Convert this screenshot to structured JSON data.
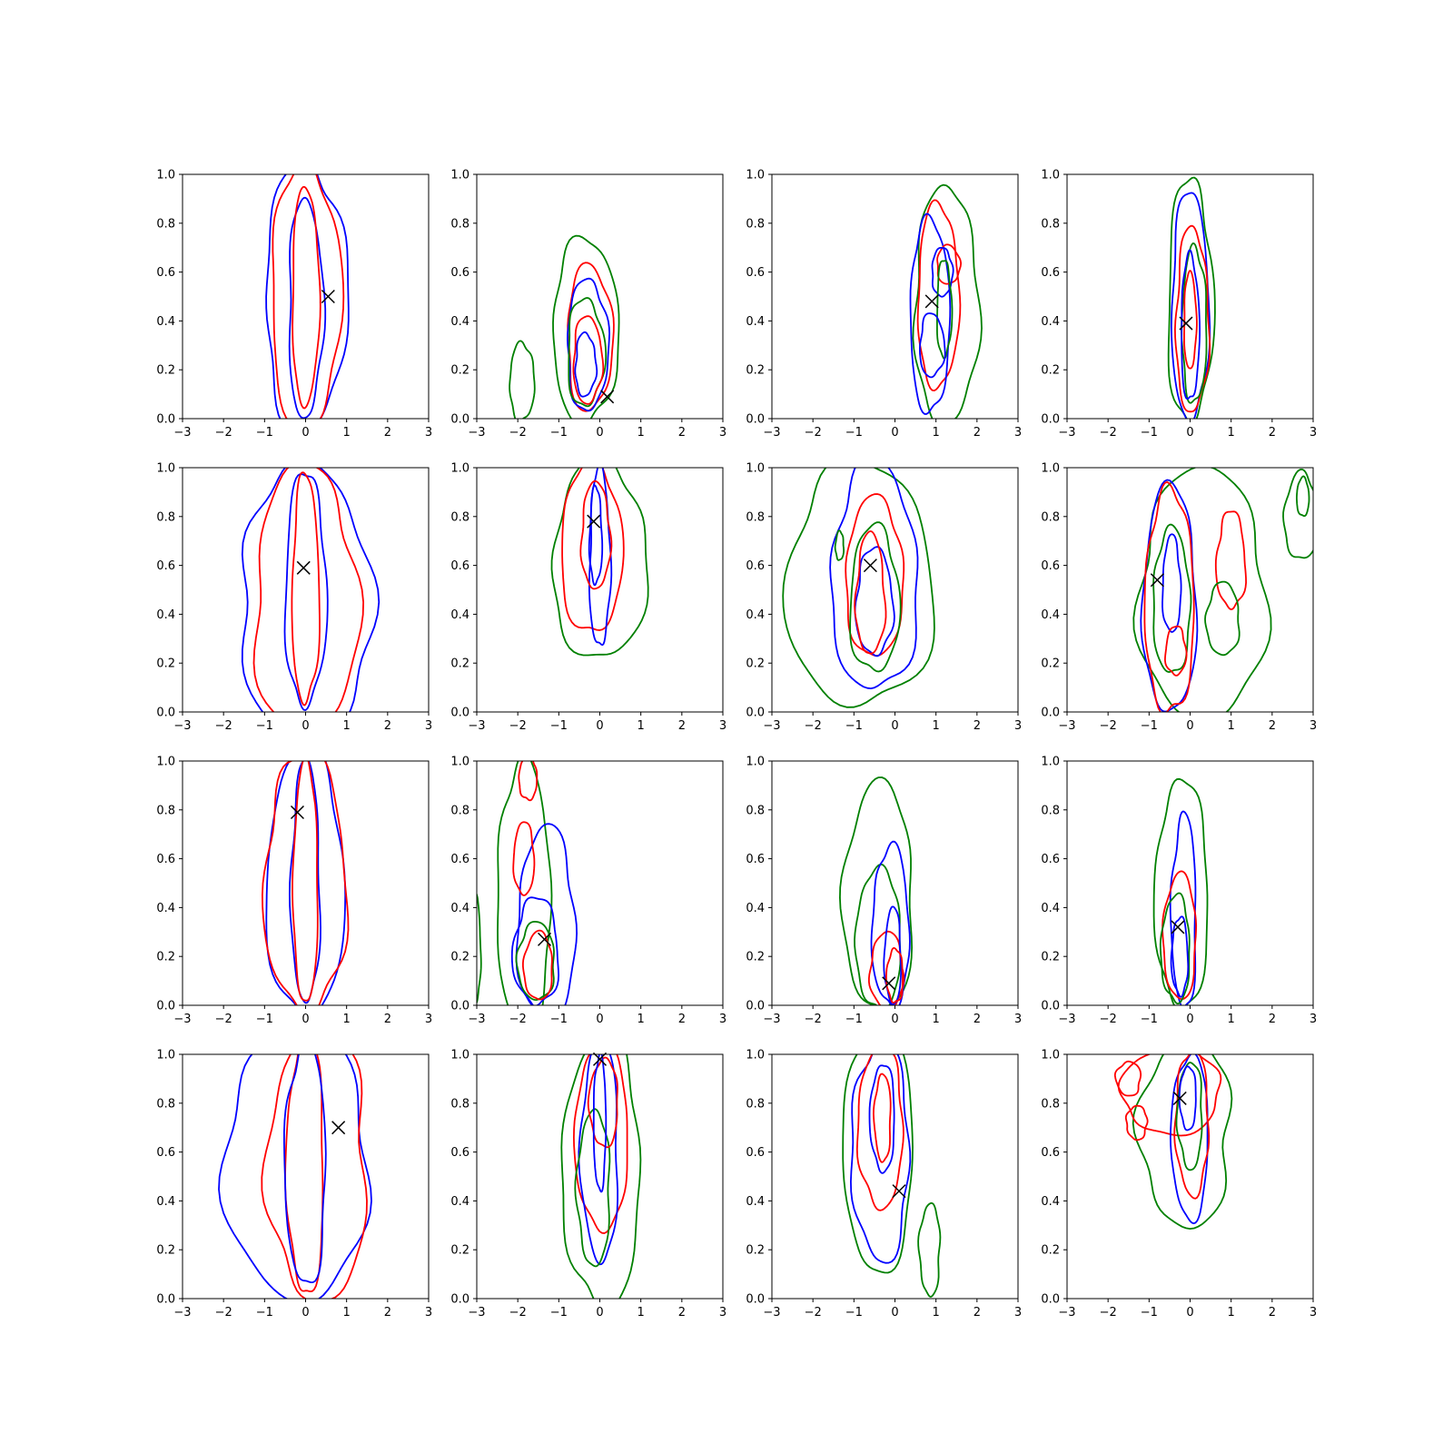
{
  "chart_data": {
    "type": "contour",
    "grid": {
      "rows": 4,
      "cols": 4
    },
    "xlim": [
      -3,
      3
    ],
    "ylim": [
      0,
      1
    ],
    "xticks": [
      -3,
      -2,
      -1,
      0,
      1,
      2,
      3
    ],
    "yticks": [
      0.0,
      0.2,
      0.4,
      0.6,
      0.8,
      1.0
    ],
    "xtick_labels": [
      "−3",
      "−2",
      "−1",
      "0",
      "1",
      "2",
      "3"
    ],
    "ytick_labels": [
      "0.0",
      "0.2",
      "0.4",
      "0.6",
      "0.8",
      "1.0"
    ],
    "colors": {
      "blue": "#0000ff",
      "red": "#ff0000",
      "green": "#008000",
      "marker": "#000000"
    },
    "panels": [
      {
        "row": 0,
        "col": 0,
        "marker": [
          0.55,
          0.5
        ],
        "contours": [
          {
            "color": "blue",
            "cx": 0.0,
            "cy": 0.5,
            "rx": 1.0,
            "ry": 0.55
          },
          {
            "color": "red",
            "cx": 0.0,
            "cy": 0.5,
            "rx": 0.85,
            "ry": 0.54
          },
          {
            "color": "blue",
            "cx": 0.0,
            "cy": 0.45,
            "rx": 0.42,
            "ry": 0.45
          },
          {
            "color": "red",
            "cx": 0.0,
            "cy": 0.5,
            "rx": 0.33,
            "ry": 0.45
          }
        ]
      },
      {
        "row": 0,
        "col": 1,
        "marker": [
          0.18,
          0.09
        ],
        "contours": [
          {
            "color": "green",
            "cx": -0.35,
            "cy": 0.36,
            "rx": 0.8,
            "ry": 0.38
          },
          {
            "color": "red",
            "cx": -0.25,
            "cy": 0.33,
            "rx": 0.55,
            "ry": 0.3
          },
          {
            "color": "blue",
            "cx": -0.3,
            "cy": 0.3,
            "rx": 0.5,
            "ry": 0.27
          },
          {
            "color": "green",
            "cx": -0.35,
            "cy": 0.27,
            "rx": 0.45,
            "ry": 0.22
          },
          {
            "color": "red",
            "cx": -0.3,
            "cy": 0.24,
            "rx": 0.35,
            "ry": 0.18
          },
          {
            "color": "blue",
            "cx": -0.35,
            "cy": 0.22,
            "rx": 0.25,
            "ry": 0.13
          },
          {
            "color": "green",
            "cx": -1.9,
            "cy": 0.15,
            "rx": 0.3,
            "ry": 0.16
          }
        ]
      },
      {
        "row": 0,
        "col": 2,
        "marker": [
          0.9,
          0.48
        ],
        "contours": [
          {
            "color": "green",
            "cx": 1.25,
            "cy": 0.46,
            "rx": 0.78,
            "ry": 0.49
          },
          {
            "color": "red",
            "cx": 1.05,
            "cy": 0.5,
            "rx": 0.5,
            "ry": 0.38
          },
          {
            "color": "blue",
            "cx": 0.85,
            "cy": 0.42,
            "rx": 0.48,
            "ry": 0.4
          },
          {
            "color": "red",
            "cx": 1.3,
            "cy": 0.63,
            "rx": 0.28,
            "ry": 0.08
          },
          {
            "color": "blue",
            "cx": 1.15,
            "cy": 0.6,
            "rx": 0.25,
            "ry": 0.1
          },
          {
            "color": "green",
            "cx": 1.2,
            "cy": 0.45,
            "rx": 0.18,
            "ry": 0.2
          },
          {
            "color": "blue",
            "cx": 0.9,
            "cy": 0.3,
            "rx": 0.3,
            "ry": 0.13
          }
        ]
      },
      {
        "row": 0,
        "col": 3,
        "marker": [
          -0.1,
          0.39
        ],
        "contours": [
          {
            "color": "green",
            "cx": 0.0,
            "cy": 0.48,
            "rx": 0.55,
            "ry": 0.5
          },
          {
            "color": "blue",
            "cx": 0.0,
            "cy": 0.46,
            "rx": 0.45,
            "ry": 0.47
          },
          {
            "color": "red",
            "cx": 0.05,
            "cy": 0.4,
            "rx": 0.4,
            "ry": 0.38
          },
          {
            "color": "green",
            "cx": 0.1,
            "cy": 0.38,
            "rx": 0.3,
            "ry": 0.32
          },
          {
            "color": "blue",
            "cx": 0.0,
            "cy": 0.37,
            "rx": 0.22,
            "ry": 0.3
          },
          {
            "color": "red",
            "cx": 0.0,
            "cy": 0.4,
            "rx": 0.15,
            "ry": 0.2
          }
        ]
      },
      {
        "row": 1,
        "col": 0,
        "marker": [
          -0.05,
          0.59
        ],
        "contours": [
          {
            "color": "blue",
            "cx": 0.0,
            "cy": 0.45,
            "rx": 1.6,
            "ry": 0.56
          },
          {
            "color": "red",
            "cx": 0.0,
            "cy": 0.45,
            "rx": 1.25,
            "ry": 0.56
          },
          {
            "color": "blue",
            "cx": 0.0,
            "cy": 0.5,
            "rx": 0.5,
            "ry": 0.48
          },
          {
            "color": "red",
            "cx": 0.0,
            "cy": 0.5,
            "rx": 0.33,
            "ry": 0.47
          }
        ]
      },
      {
        "row": 1,
        "col": 1,
        "marker": [
          -0.15,
          0.78
        ],
        "contours": [
          {
            "color": "green",
            "cx": 0.0,
            "cy": 0.62,
            "rx": 1.15,
            "ry": 0.41
          },
          {
            "color": "red",
            "cx": -0.2,
            "cy": 0.67,
            "rx": 0.75,
            "ry": 0.35
          },
          {
            "color": "blue",
            "cx": 0.0,
            "cy": 0.63,
            "rx": 0.25,
            "ry": 0.37
          },
          {
            "color": "red",
            "cx": -0.1,
            "cy": 0.72,
            "rx": 0.35,
            "ry": 0.22
          },
          {
            "color": "blue",
            "cx": -0.1,
            "cy": 0.72,
            "rx": 0.15,
            "ry": 0.2
          }
        ]
      },
      {
        "row": 1,
        "col": 2,
        "marker": [
          -0.6,
          0.6
        ],
        "contours": [
          {
            "color": "green",
            "cx": -0.85,
            "cy": 0.52,
            "rx": 1.8,
            "ry": 0.5
          },
          {
            "color": "blue",
            "cx": -0.5,
            "cy": 0.55,
            "rx": 1.05,
            "ry": 0.47
          },
          {
            "color": "red",
            "cx": -0.5,
            "cy": 0.55,
            "rx": 0.7,
            "ry": 0.33
          },
          {
            "color": "green",
            "cx": -0.5,
            "cy": 0.46,
            "rx": 0.6,
            "ry": 0.3
          },
          {
            "color": "blue",
            "cx": -0.5,
            "cy": 0.45,
            "rx": 0.45,
            "ry": 0.22
          },
          {
            "color": "red",
            "cx": -0.6,
            "cy": 0.48,
            "rx": 0.35,
            "ry": 0.25
          },
          {
            "color": "green",
            "cx": -1.35,
            "cy": 0.68,
            "rx": 0.1,
            "ry": 0.06
          }
        ]
      },
      {
        "row": 1,
        "col": 3,
        "marker": [
          -0.8,
          0.54
        ],
        "contours": [
          {
            "color": "green",
            "cx": 0.3,
            "cy": 0.48,
            "rx": 1.55,
            "ry": 0.52
          },
          {
            "color": "blue",
            "cx": -0.5,
            "cy": 0.46,
            "rx": 0.65,
            "ry": 0.47
          },
          {
            "color": "red",
            "cx": -0.5,
            "cy": 0.45,
            "rx": 0.6,
            "ry": 0.46
          },
          {
            "color": "green",
            "cx": -0.45,
            "cy": 0.45,
            "rx": 0.45,
            "ry": 0.3
          },
          {
            "color": "blue",
            "cx": -0.45,
            "cy": 0.52,
            "rx": 0.22,
            "ry": 0.2
          },
          {
            "color": "red",
            "cx": -0.35,
            "cy": 0.25,
            "rx": 0.25,
            "ry": 0.1
          },
          {
            "color": "red",
            "cx": 1.0,
            "cy": 0.62,
            "rx": 0.35,
            "ry": 0.2
          },
          {
            "color": "green",
            "cx": 0.8,
            "cy": 0.38,
            "rx": 0.4,
            "ry": 0.15
          },
          {
            "color": "green",
            "cx": 2.7,
            "cy": 0.8,
            "rx": 0.4,
            "ry": 0.18
          },
          {
            "color": "green",
            "cx": 2.75,
            "cy": 0.88,
            "rx": 0.15,
            "ry": 0.08
          }
        ]
      },
      {
        "row": 2,
        "col": 0,
        "marker": [
          -0.2,
          0.79
        ],
        "contours": [
          {
            "color": "blue",
            "cx": 0.0,
            "cy": 0.5,
            "rx": 0.95,
            "ry": 0.55
          },
          {
            "color": "red",
            "cx": 0.0,
            "cy": 0.5,
            "rx": 1.0,
            "ry": 0.53
          },
          {
            "color": "blue",
            "cx": 0.0,
            "cy": 0.5,
            "rx": 0.35,
            "ry": 0.5
          },
          {
            "color": "red",
            "cx": 0.0,
            "cy": 0.5,
            "rx": 0.3,
            "ry": 0.5
          }
        ]
      },
      {
        "row": 2,
        "col": 1,
        "marker": [
          -1.35,
          0.27
        ],
        "contours": [
          {
            "color": "green",
            "cx": -1.85,
            "cy": 0.45,
            "rx": 0.65,
            "ry": 0.55
          },
          {
            "color": "blue",
            "cx": -1.3,
            "cy": 0.33,
            "rx": 0.7,
            "ry": 0.4
          },
          {
            "color": "red",
            "cx": -1.85,
            "cy": 0.6,
            "rx": 0.25,
            "ry": 0.15
          },
          {
            "color": "blue",
            "cx": -1.55,
            "cy": 0.22,
            "rx": 0.55,
            "ry": 0.22
          },
          {
            "color": "green",
            "cx": -1.55,
            "cy": 0.18,
            "rx": 0.45,
            "ry": 0.16
          },
          {
            "color": "red",
            "cx": -1.5,
            "cy": 0.16,
            "rx": 0.35,
            "ry": 0.14
          },
          {
            "color": "red",
            "cx": -1.75,
            "cy": 0.93,
            "rx": 0.22,
            "ry": 0.09
          },
          {
            "color": "green",
            "cx": -3.05,
            "cy": 0.23,
            "rx": 0.15,
            "ry": 0.22
          }
        ]
      },
      {
        "row": 2,
        "col": 2,
        "marker": [
          -0.15,
          0.09
        ],
        "contours": [
          {
            "color": "green",
            "cx": -0.4,
            "cy": 0.44,
            "rx": 0.85,
            "ry": 0.47
          },
          {
            "color": "green",
            "cx": -0.4,
            "cy": 0.27,
            "rx": 0.55,
            "ry": 0.29
          },
          {
            "color": "blue",
            "cx": -0.1,
            "cy": 0.32,
            "rx": 0.45,
            "ry": 0.33
          },
          {
            "color": "red",
            "cx": -0.2,
            "cy": 0.14,
            "rx": 0.4,
            "ry": 0.16
          },
          {
            "color": "blue",
            "cx": -0.05,
            "cy": 0.2,
            "rx": 0.2,
            "ry": 0.2
          },
          {
            "color": "red",
            "cx": 0.0,
            "cy": 0.12,
            "rx": 0.2,
            "ry": 0.11
          }
        ]
      },
      {
        "row": 2,
        "col": 3,
        "marker": [
          -0.3,
          0.32
        ],
        "contours": [
          {
            "color": "green",
            "cx": -0.2,
            "cy": 0.45,
            "rx": 0.65,
            "ry": 0.47
          },
          {
            "color": "blue",
            "cx": -0.15,
            "cy": 0.38,
            "rx": 0.3,
            "ry": 0.4
          },
          {
            "color": "red",
            "cx": -0.25,
            "cy": 0.28,
            "rx": 0.4,
            "ry": 0.26
          },
          {
            "color": "green",
            "cx": -0.35,
            "cy": 0.23,
            "rx": 0.35,
            "ry": 0.22
          },
          {
            "color": "blue",
            "cx": -0.25,
            "cy": 0.2,
            "rx": 0.2,
            "ry": 0.16
          }
        ]
      },
      {
        "row": 3,
        "col": 0,
        "marker": [
          0.8,
          0.7
        ],
        "contours": [
          {
            "color": "blue",
            "cx": -0.2,
            "cy": 0.55,
            "rx": 1.75,
            "ry": 0.56
          },
          {
            "color": "red",
            "cx": 0.3,
            "cy": 0.55,
            "rx": 1.2,
            "ry": 0.57
          },
          {
            "color": "red",
            "cx": 0.0,
            "cy": 0.55,
            "rx": 0.45,
            "ry": 0.54
          },
          {
            "color": "blue",
            "cx": 0.0,
            "cy": 0.55,
            "rx": 0.5,
            "ry": 0.5
          }
        ]
      },
      {
        "row": 3,
        "col": 1,
        "marker": [
          0.0,
          0.98
        ],
        "contours": [
          {
            "color": "green",
            "cx": 0.05,
            "cy": 0.52,
            "rx": 0.95,
            "ry": 0.56
          },
          {
            "color": "red",
            "cx": 0.05,
            "cy": 0.66,
            "rx": 0.65,
            "ry": 0.38
          },
          {
            "color": "blue",
            "cx": 0.0,
            "cy": 0.6,
            "rx": 0.45,
            "ry": 0.45
          },
          {
            "color": "green",
            "cx": -0.15,
            "cy": 0.45,
            "rx": 0.4,
            "ry": 0.32
          },
          {
            "color": "red",
            "cx": 0.1,
            "cy": 0.8,
            "rx": 0.35,
            "ry": 0.18
          },
          {
            "color": "blue",
            "cx": 0.0,
            "cy": 0.72,
            "rx": 0.15,
            "ry": 0.28
          }
        ]
      },
      {
        "row": 3,
        "col": 2,
        "marker": [
          0.1,
          0.44
        ],
        "contours": [
          {
            "color": "green",
            "cx": -0.4,
            "cy": 0.62,
            "rx": 0.85,
            "ry": 0.52
          },
          {
            "color": "blue",
            "cx": -0.35,
            "cy": 0.6,
            "rx": 0.7,
            "ry": 0.45
          },
          {
            "color": "red",
            "cx": -0.35,
            "cy": 0.7,
            "rx": 0.55,
            "ry": 0.33
          },
          {
            "color": "blue",
            "cx": -0.3,
            "cy": 0.74,
            "rx": 0.3,
            "ry": 0.22
          },
          {
            "color": "red",
            "cx": -0.3,
            "cy": 0.74,
            "rx": 0.2,
            "ry": 0.18
          },
          {
            "color": "green",
            "cx": 0.85,
            "cy": 0.2,
            "rx": 0.25,
            "ry": 0.19
          }
        ]
      },
      {
        "row": 3,
        "col": 3,
        "marker": [
          -0.25,
          0.82
        ],
        "contours": [
          {
            "color": "green",
            "cx": -0.1,
            "cy": 0.68,
            "rx": 1.1,
            "ry": 0.39
          },
          {
            "color": "red",
            "cx": -0.45,
            "cy": 0.85,
            "rx": 1.2,
            "ry": 0.18
          },
          {
            "color": "blue",
            "cx": 0.0,
            "cy": 0.66,
            "rx": 0.45,
            "ry": 0.34
          },
          {
            "color": "red",
            "cx": 0.05,
            "cy": 0.72,
            "rx": 0.4,
            "ry": 0.3
          },
          {
            "color": "green",
            "cx": 0.0,
            "cy": 0.75,
            "rx": 0.3,
            "ry": 0.22
          },
          {
            "color": "blue",
            "cx": -0.05,
            "cy": 0.82,
            "rx": 0.2,
            "ry": 0.13
          },
          {
            "color": "red",
            "cx": -1.5,
            "cy": 0.9,
            "rx": 0.3,
            "ry": 0.07
          },
          {
            "color": "red",
            "cx": -1.3,
            "cy": 0.72,
            "rx": 0.25,
            "ry": 0.07
          }
        ]
      }
    ]
  }
}
